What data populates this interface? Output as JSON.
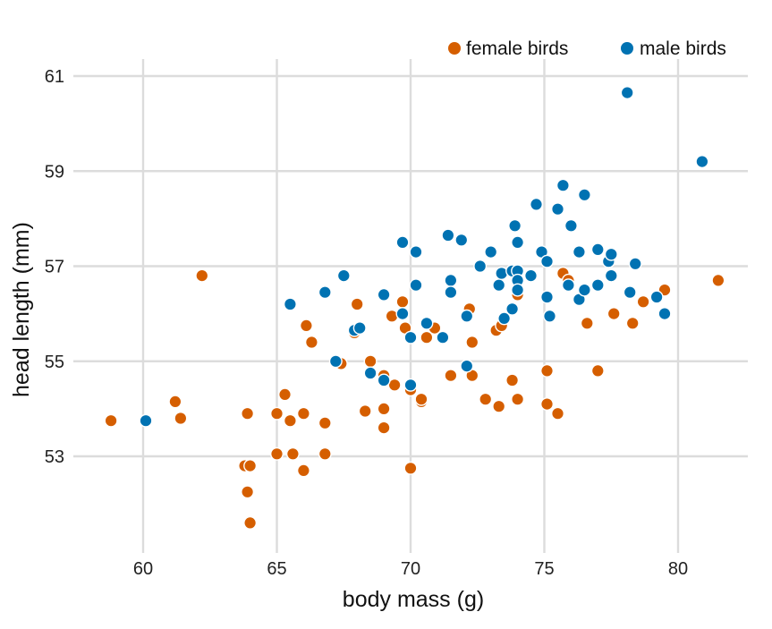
{
  "chart_data": {
    "type": "scatter",
    "title": "",
    "xlabel": "body mass (g)",
    "ylabel": "head length (mm)",
    "xlim": [
      57.4,
      82.6
    ],
    "ylim": [
      51.0,
      61.6
    ],
    "xticks": [
      60,
      65,
      70,
      75,
      80
    ],
    "yticks": [
      53,
      55,
      57,
      59,
      61
    ],
    "xtick_labels": [
      "60",
      "65",
      "70",
      "75",
      "80"
    ],
    "ytick_labels": [
      "53",
      "55",
      "57",
      "59",
      "61"
    ],
    "grid": true,
    "legend_position": "top-right",
    "series": [
      {
        "name": "female birds",
        "color": "#D55E00",
        "points": [
          [
            58.8,
            53.75
          ],
          [
            61.2,
            54.15
          ],
          [
            61.4,
            53.8
          ],
          [
            62.2,
            56.8
          ],
          [
            63.8,
            52.8
          ],
          [
            64.0,
            52.8
          ],
          [
            63.9,
            53.9
          ],
          [
            63.9,
            52.25
          ],
          [
            64.0,
            51.6
          ],
          [
            65.0,
            53.9
          ],
          [
            65.0,
            53.05
          ],
          [
            65.3,
            54.3
          ],
          [
            65.5,
            53.75
          ],
          [
            65.6,
            53.05
          ],
          [
            66.0,
            53.9
          ],
          [
            66.0,
            52.7
          ],
          [
            66.1,
            55.75
          ],
          [
            66.3,
            55.4
          ],
          [
            66.8,
            53.7
          ],
          [
            66.8,
            53.05
          ],
          [
            67.4,
            54.95
          ],
          [
            67.9,
            55.6
          ],
          [
            68.0,
            56.2
          ],
          [
            68.3,
            53.95
          ],
          [
            68.5,
            55.0
          ],
          [
            69.0,
            54.7
          ],
          [
            69.0,
            54.0
          ],
          [
            69.0,
            53.6
          ],
          [
            69.3,
            55.95
          ],
          [
            69.4,
            54.5
          ],
          [
            69.7,
            56.25
          ],
          [
            69.8,
            55.7
          ],
          [
            70.0,
            54.4
          ],
          [
            70.0,
            52.75
          ],
          [
            70.4,
            54.15
          ],
          [
            70.4,
            54.2
          ],
          [
            70.6,
            55.5
          ],
          [
            70.9,
            55.7
          ],
          [
            71.5,
            54.7
          ],
          [
            72.2,
            56.1
          ],
          [
            72.3,
            55.4
          ],
          [
            72.3,
            54.7
          ],
          [
            72.8,
            54.2
          ],
          [
            73.2,
            55.65
          ],
          [
            73.3,
            54.05
          ],
          [
            73.4,
            55.75
          ],
          [
            73.8,
            54.6
          ],
          [
            74.0,
            56.4
          ],
          [
            74.0,
            54.2
          ],
          [
            75.1,
            54.8
          ],
          [
            75.1,
            54.1
          ],
          [
            75.5,
            53.9
          ],
          [
            75.7,
            56.85
          ],
          [
            75.9,
            56.7
          ],
          [
            76.6,
            55.8
          ],
          [
            77.0,
            54.8
          ],
          [
            77.6,
            56.0
          ],
          [
            78.3,
            55.8
          ],
          [
            78.7,
            56.25
          ],
          [
            79.5,
            56.5
          ],
          [
            81.5,
            56.7
          ]
        ]
      },
      {
        "name": "male birds",
        "color": "#0072B2",
        "points": [
          [
            60.1,
            53.75
          ],
          [
            65.5,
            56.2
          ],
          [
            66.8,
            56.45
          ],
          [
            67.2,
            55.0
          ],
          [
            67.5,
            56.8
          ],
          [
            67.9,
            55.65
          ],
          [
            68.1,
            55.7
          ],
          [
            68.5,
            54.75
          ],
          [
            69.0,
            56.4
          ],
          [
            69.0,
            54.6
          ],
          [
            69.7,
            57.5
          ],
          [
            69.7,
            56.0
          ],
          [
            70.0,
            55.5
          ],
          [
            70.0,
            54.5
          ],
          [
            70.2,
            57.3
          ],
          [
            70.2,
            56.6
          ],
          [
            70.6,
            55.8
          ],
          [
            71.2,
            55.5
          ],
          [
            71.4,
            57.65
          ],
          [
            71.5,
            56.7
          ],
          [
            71.5,
            56.45
          ],
          [
            71.9,
            57.55
          ],
          [
            72.1,
            55.95
          ],
          [
            72.1,
            54.9
          ],
          [
            72.6,
            57.0
          ],
          [
            73.0,
            57.3
          ],
          [
            73.3,
            56.6
          ],
          [
            73.4,
            56.85
          ],
          [
            73.5,
            55.9
          ],
          [
            73.8,
            56.1
          ],
          [
            73.8,
            56.9
          ],
          [
            73.9,
            57.85
          ],
          [
            74.0,
            57.5
          ],
          [
            74.0,
            56.9
          ],
          [
            74.0,
            56.7
          ],
          [
            74.0,
            56.5
          ],
          [
            74.5,
            56.8
          ],
          [
            74.7,
            58.3
          ],
          [
            74.9,
            57.3
          ],
          [
            75.1,
            57.1
          ],
          [
            75.1,
            56.35
          ],
          [
            75.2,
            55.95
          ],
          [
            75.5,
            58.2
          ],
          [
            75.7,
            58.7
          ],
          [
            75.9,
            56.6
          ],
          [
            76.0,
            57.85
          ],
          [
            76.3,
            57.3
          ],
          [
            76.3,
            56.3
          ],
          [
            76.5,
            58.5
          ],
          [
            76.5,
            56.5
          ],
          [
            77.0,
            57.35
          ],
          [
            77.0,
            56.6
          ],
          [
            77.4,
            57.1
          ],
          [
            77.5,
            56.8
          ],
          [
            77.5,
            57.25
          ],
          [
            78.1,
            60.65
          ],
          [
            78.2,
            56.45
          ],
          [
            78.4,
            57.05
          ],
          [
            79.2,
            56.35
          ],
          [
            79.5,
            56.0
          ],
          [
            80.9,
            59.2
          ]
        ]
      }
    ]
  }
}
